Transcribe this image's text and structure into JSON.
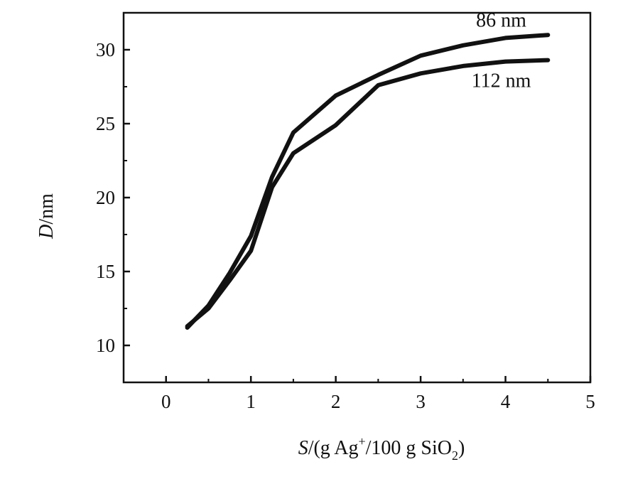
{
  "chart_data": {
    "type": "line",
    "xlabel": {
      "prefix_italic": "S",
      "prefix": "/(g Ag",
      "sup": "+",
      "middle": "/100 g SiO",
      "sub": "2",
      "suffix": ")"
    },
    "ylabel": {
      "italic": "D",
      "rest": "/nm"
    },
    "xlim": [
      -0.5,
      5
    ],
    "ylim": [
      7.5,
      32.5
    ],
    "xticks": [
      0,
      1,
      2,
      3,
      4,
      5
    ],
    "yticks": [
      10,
      15,
      20,
      25,
      30
    ],
    "grid": false,
    "series": [
      {
        "name": "86 nm",
        "x": [
          0.25,
          0.5,
          0.75,
          1.0,
          1.25,
          1.5,
          2.0,
          2.5,
          3.0,
          3.5,
          4.0,
          4.5
        ],
        "y": [
          11.2,
          12.7,
          14.9,
          17.4,
          21.4,
          24.4,
          26.9,
          28.3,
          29.6,
          30.3,
          30.8,
          31.0
        ]
      },
      {
        "name": "112 nm",
        "x": [
          0.25,
          0.5,
          0.75,
          1.0,
          1.25,
          1.5,
          2.0,
          2.5,
          3.0,
          3.5,
          4.0,
          4.5
        ],
        "y": [
          11.3,
          12.5,
          14.4,
          16.4,
          20.7,
          23.0,
          24.9,
          27.6,
          28.4,
          28.9,
          29.2,
          29.3
        ]
      }
    ]
  }
}
